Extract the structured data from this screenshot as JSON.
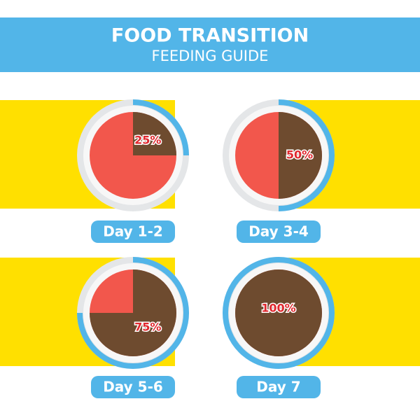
{
  "header": {
    "title": "FOOD TRANSITION",
    "subtitle": "FEEDING GUIDE"
  },
  "panels": [
    {
      "label": "Day 1-2",
      "value": 25,
      "value_label": "25%"
    },
    {
      "label": "Day 3-4",
      "value": 50,
      "value_label": "50%"
    },
    {
      "label": "Day 5-6",
      "value": 75,
      "value_label": "75%"
    },
    {
      "label": "Day 7",
      "value": 100,
      "value_label": "100%"
    }
  ]
}
